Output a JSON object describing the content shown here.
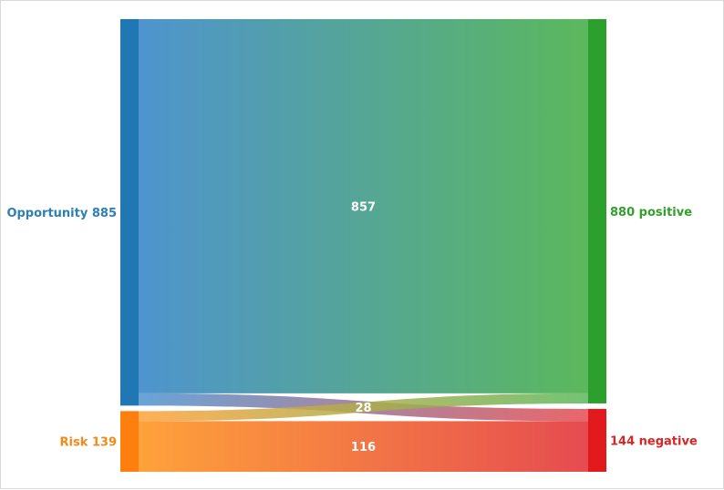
{
  "chart_data": {
    "type": "sankey",
    "nodes": [
      {
        "id": "opportunity",
        "side": "source",
        "label": "Opportunity 885",
        "value": 885,
        "color": "#1f77b4",
        "label_color": "#2e7fb3"
      },
      {
        "id": "risk",
        "side": "source",
        "label": "Risk 139",
        "value": 139,
        "color": "#ff7f0e",
        "label_color": "#f28a1a"
      },
      {
        "id": "positive",
        "side": "target",
        "label": "880 positive",
        "value": 880,
        "color": "#2ca02c",
        "label_color": "#33a02c"
      },
      {
        "id": "negative",
        "side": "target",
        "label": "144 negative",
        "value": 144,
        "color": "#e31a1c",
        "label_color": "#d62728"
      }
    ],
    "links": [
      {
        "source": "opportunity",
        "target": "positive",
        "value": 857,
        "label": "857",
        "from_color": "#4e94cf",
        "to_color": "#5cb85c"
      },
      {
        "source": "opportunity",
        "target": "negative",
        "value": 28,
        "label": "28",
        "from_color": "#4e94cf",
        "to_color": "#e64b50"
      },
      {
        "source": "risk",
        "target": "positive",
        "value": 23,
        "label": "",
        "from_color": "#ffa23a",
        "to_color": "#5cb85c"
      },
      {
        "source": "risk",
        "target": "negative",
        "value": 116,
        "label": "116",
        "from_color": "#ffa23a",
        "to_color": "#e64b50"
      }
    ]
  }
}
